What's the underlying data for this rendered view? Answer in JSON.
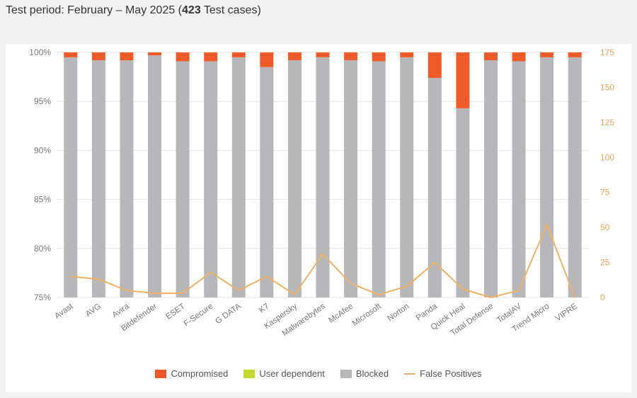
{
  "header": {
    "prefix": "Test period: February – May 2025 (",
    "count": "423",
    "suffix": " Test cases)"
  },
  "colors": {
    "compromised": "#ef5a2b",
    "user_dependent": "#c9d631",
    "blocked": "#b7b6b8",
    "false_positives": "#f0b068",
    "grid": "#e3e3e3"
  },
  "chart_data": {
    "type": "bar",
    "stacked": true,
    "categories": [
      "Avast",
      "AVG",
      "Avira",
      "Bitdefender",
      "ESET",
      "F-Secure",
      "G DATA",
      "K7",
      "Kaspersky",
      "Malwarebytes",
      "McAfee",
      "Microsoft",
      "Norton",
      "Panda",
      "Quick Heal",
      "Total Defense",
      "TotalAV",
      "Trend Micro",
      "VIPRE"
    ],
    "series": [
      {
        "name": "Compromised",
        "values": [
          0.5,
          0.8,
          0.8,
          0.3,
          0.9,
          0.9,
          0.5,
          1.5,
          0.8,
          0.5,
          0.8,
          0.9,
          0.5,
          2.6,
          5.7,
          0.8,
          0.9,
          0.5,
          0.5
        ]
      },
      {
        "name": "User dependent",
        "values": [
          0,
          0,
          0,
          0,
          0,
          0,
          0,
          0,
          0,
          0,
          0,
          0,
          0,
          0,
          0,
          0,
          0,
          0,
          0
        ]
      },
      {
        "name": "Blocked",
        "values": [
          99.5,
          99.2,
          99.2,
          99.7,
          99.1,
          99.1,
          99.5,
          98.5,
          99.2,
          99.5,
          99.2,
          99.1,
          99.5,
          97.4,
          94.3,
          99.2,
          99.1,
          99.5,
          99.5
        ]
      }
    ],
    "line_series": {
      "name": "False Positives",
      "axis": "right",
      "values": [
        15,
        13,
        5,
        3,
        3,
        18,
        5,
        15,
        2,
        31,
        10,
        2,
        8,
        25,
        6,
        0,
        5,
        52,
        0
      ]
    },
    "y_left": {
      "min": 75,
      "max": 100,
      "ticks": [
        "75%",
        "80%",
        "85%",
        "90%",
        "95%",
        "100%"
      ]
    },
    "y_right": {
      "min": 0,
      "max": 175,
      "ticks": [
        "0",
        "25",
        "50",
        "75",
        "100",
        "125",
        "150",
        "175"
      ]
    },
    "grid": true,
    "legend_position": "bottom"
  },
  "legend": [
    {
      "label": "Compromised",
      "kind": "box",
      "color": "#ef5a2b"
    },
    {
      "label": "User dependent",
      "kind": "box",
      "color": "#c9d631"
    },
    {
      "label": "Blocked",
      "kind": "box",
      "color": "#b7b6b8"
    },
    {
      "label": "False Positives",
      "kind": "line",
      "color": "#f0b068"
    }
  ]
}
